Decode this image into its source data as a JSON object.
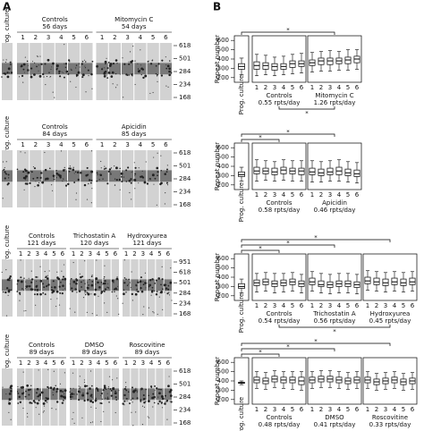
{
  "panel_a": {
    "label": "A",
    "gels": [
      {
        "prog": "Prog. culture",
        "groups": [
          {
            "name": "Controls",
            "days": "56 days",
            "lanes": [
              "1",
              "2",
              "3",
              "4",
              "5",
              "6"
            ]
          },
          {
            "name": "Mitomycin C",
            "days": "54 days",
            "lanes": [
              "1",
              "2",
              "3",
              "4",
              "5",
              "6"
            ]
          }
        ],
        "markers": [
          618,
          501,
          284,
          234,
          168
        ]
      },
      {
        "prog": "Prog. culture",
        "groups": [
          {
            "name": "Controls",
            "days": "84 days",
            "lanes": [
              "1",
              "2",
              "3",
              "4",
              "5",
              "6"
            ]
          },
          {
            "name": "Apicidin",
            "days": "85 days",
            "lanes": [
              "1",
              "2",
              "3",
              "4",
              "5",
              "6"
            ]
          }
        ],
        "markers": [
          618,
          501,
          284,
          234,
          168
        ]
      },
      {
        "prog": "Prog. culture",
        "groups": [
          {
            "name": "Controls",
            "days": "121 days",
            "lanes": [
              "1",
              "2",
              "3",
              "4",
              "5",
              "6"
            ]
          },
          {
            "name": "Trichostatin A",
            "days": "120 days",
            "lanes": [
              "1",
              "2",
              "3",
              "4",
              "5",
              "6"
            ]
          },
          {
            "name": "Hydroxyurea",
            "days": "121 days",
            "lanes": [
              "1",
              "2",
              "3",
              "4",
              "5",
              "6"
            ]
          }
        ],
        "markers": [
          951,
          618,
          501,
          284,
          234,
          168
        ]
      },
      {
        "prog": "Prog. culture",
        "groups": [
          {
            "name": "Controls",
            "days": "89 days",
            "lanes": [
              "1",
              "2",
              "3",
              "4",
              "5",
              "6"
            ]
          },
          {
            "name": "DMSO",
            "days": "89 days",
            "lanes": [
              "1",
              "2",
              "3",
              "4",
              "5",
              "6"
            ]
          },
          {
            "name": "Roscovitine",
            "days": "89 days",
            "lanes": [
              "1",
              "2",
              "3",
              "4",
              "5",
              "6"
            ]
          }
        ],
        "markers": [
          618,
          501,
          284,
          234,
          168
        ]
      }
    ]
  },
  "panel_b": {
    "label": "B"
  },
  "chart_data": [
    {
      "type": "box",
      "y_label": "Repeat number",
      "ylim": [
        150,
        650
      ],
      "yticks": [
        200,
        300,
        400,
        500,
        600
      ],
      "prog": {
        "label": "Prog. culture",
        "box": [
          230,
          290,
          320,
          350,
          410
        ]
      },
      "groups": [
        {
          "name": "Controls",
          "rate": "0.55 rpts/day",
          "categories": [
            "1",
            "2",
            "3",
            "4",
            "5",
            "6"
          ],
          "boxes": [
            [
              220,
              290,
              330,
              370,
              450
            ],
            [
              230,
              290,
              330,
              360,
              440
            ],
            [
              220,
              280,
              320,
              350,
              420
            ],
            [
              230,
              290,
              320,
              350,
              430
            ],
            [
              240,
              310,
              350,
              380,
              450
            ],
            [
              250,
              320,
              350,
              380,
              460
            ]
          ]
        },
        {
          "name": "Mitomycin C",
          "rate": "1.26 rpts/day",
          "categories": [
            "1",
            "2",
            "3",
            "4",
            "5",
            "6"
          ],
          "boxes": [
            [
              260,
              330,
              360,
              390,
              470
            ],
            [
              270,
              340,
              380,
              410,
              480
            ],
            [
              270,
              340,
              380,
              410,
              490
            ],
            [
              280,
              350,
              380,
              410,
              480
            ],
            [
              280,
              350,
              390,
              420,
              500
            ],
            [
              290,
              360,
              400,
              430,
              500
            ]
          ]
        }
      ],
      "brackets": [
        "*",
        "*"
      ]
    },
    {
      "type": "box",
      "y_label": "Repeat number",
      "ylim": [
        150,
        650
      ],
      "yticks": [
        200,
        300,
        400,
        500,
        600
      ],
      "prog": {
        "label": "Prog. culture",
        "box": [
          240,
          290,
          310,
          340,
          390
        ]
      },
      "groups": [
        {
          "name": "Controls",
          "rate": "0.58 rpts/day",
          "categories": [
            "1",
            "2",
            "3",
            "4",
            "5",
            "6"
          ],
          "boxes": [
            [
              240,
              320,
              350,
              390,
              470
            ],
            [
              250,
              320,
              350,
              380,
              460
            ],
            [
              240,
              310,
              340,
              380,
              450
            ],
            [
              250,
              320,
              360,
              390,
              470
            ],
            [
              240,
              320,
              350,
              380,
              460
            ],
            [
              240,
              310,
              350,
              380,
              460
            ]
          ]
        },
        {
          "name": "Apicidin",
          "rate": "0.46 rpts/day",
          "categories": [
            "1",
            "2",
            "3",
            "4",
            "5",
            "6"
          ],
          "boxes": [
            [
              230,
              310,
              340,
              380,
              460
            ],
            [
              230,
              300,
              330,
              370,
              450
            ],
            [
              240,
              310,
              340,
              380,
              460
            ],
            [
              240,
              310,
              350,
              390,
              470
            ],
            [
              230,
              300,
              330,
              370,
              450
            ],
            [
              220,
              290,
              320,
              360,
              440
            ]
          ]
        }
      ],
      "brackets": [
        "*",
        "*"
      ]
    },
    {
      "type": "box",
      "y_label": "Repeat number",
      "ylim": [
        150,
        650
      ],
      "yticks": [
        200,
        300,
        400,
        500,
        600
      ],
      "prog": {
        "label": "Prog. culture",
        "box": [
          230,
          280,
          300,
          330,
          380
        ]
      },
      "groups": [
        {
          "name": "Controls",
          "rate": "0.54 rpts/day",
          "categories": [
            "1",
            "2",
            "3",
            "4",
            "5",
            "6"
          ],
          "boxes": [
            [
              240,
              310,
              340,
              370,
              440
            ],
            [
              250,
              320,
              350,
              380,
              450
            ],
            [
              230,
              300,
              330,
              360,
              440
            ],
            [
              240,
              310,
              340,
              370,
              440
            ],
            [
              250,
              320,
              350,
              380,
              450
            ],
            [
              230,
              300,
              330,
              360,
              430
            ]
          ]
        },
        {
          "name": "Trichostatin A",
          "rate": "0.56 rpts/day",
          "categories": [
            "1",
            "2",
            "3",
            "4",
            "5",
            "6"
          ],
          "boxes": [
            [
              250,
              320,
              350,
              390,
              460
            ],
            [
              230,
              300,
              320,
              360,
              440
            ],
            [
              220,
              290,
              320,
              350,
              430
            ],
            [
              230,
              300,
              330,
              360,
              440
            ],
            [
              230,
              300,
              330,
              360,
              440
            ],
            [
              220,
              290,
              320,
              350,
              430
            ]
          ]
        },
        {
          "name": "Hydroxyurea",
          "rate": "0.45 rpts/day",
          "categories": [
            "1",
            "2",
            "3",
            "4",
            "5",
            "6"
          ],
          "boxes": [
            [
              260,
              330,
              360,
              400,
              470
            ],
            [
              250,
              320,
              350,
              390,
              460
            ],
            [
              240,
              310,
              340,
              380,
              450
            ],
            [
              250,
              320,
              350,
              390,
              460
            ],
            [
              240,
              310,
              340,
              380,
              450
            ],
            [
              250,
              320,
              350,
              390,
              460
            ]
          ]
        }
      ],
      "brackets": [
        "*",
        "*",
        "*",
        "*"
      ]
    },
    {
      "type": "box",
      "y_label": "Repeat number",
      "ylim": [
        150,
        650
      ],
      "yticks": [
        200,
        300,
        400,
        500,
        600
      ],
      "prog": {
        "label": "Prog. culture",
        "box": [
          360,
          375,
          380,
          385,
          400
        ]
      },
      "groups": [
        {
          "name": "Controls",
          "rate": "0.48 rpts/day",
          "categories": [
            "1",
            "2",
            "3",
            "4",
            "5",
            "6"
          ],
          "boxes": [
            [
              320,
              380,
              410,
              440,
              500
            ],
            [
              310,
              370,
              400,
              430,
              490
            ],
            [
              330,
              390,
              420,
              450,
              510
            ],
            [
              320,
              380,
              410,
              440,
              500
            ],
            [
              310,
              380,
              410,
              440,
              500
            ],
            [
              300,
              360,
              400,
              440,
              500
            ]
          ]
        },
        {
          "name": "DMSO",
          "rate": "0.41 rpts/day",
          "categories": [
            "1",
            "2",
            "3",
            "4",
            "5",
            "6"
          ],
          "boxes": [
            [
              320,
              380,
              410,
              440,
              500
            ],
            [
              330,
              390,
              420,
              450,
              510
            ],
            [
              330,
              390,
              420,
              450,
              510
            ],
            [
              320,
              380,
              410,
              440,
              500
            ],
            [
              310,
              370,
              400,
              430,
              490
            ],
            [
              320,
              380,
              410,
              440,
              500
            ]
          ]
        },
        {
          "name": "Roscovitine",
          "rate": "0.33 rpts/day",
          "categories": [
            "1",
            "2",
            "3",
            "4",
            "5",
            "6"
          ],
          "boxes": [
            [
              320,
              380,
              410,
              440,
              500
            ],
            [
              300,
              360,
              390,
              420,
              480
            ],
            [
              310,
              370,
              400,
              430,
              490
            ],
            [
              320,
              380,
              410,
              440,
              500
            ],
            [
              300,
              360,
              390,
              420,
              480
            ],
            [
              310,
              370,
              400,
              430,
              490
            ]
          ]
        }
      ],
      "brackets": [
        "*",
        "*",
        "*"
      ]
    }
  ]
}
